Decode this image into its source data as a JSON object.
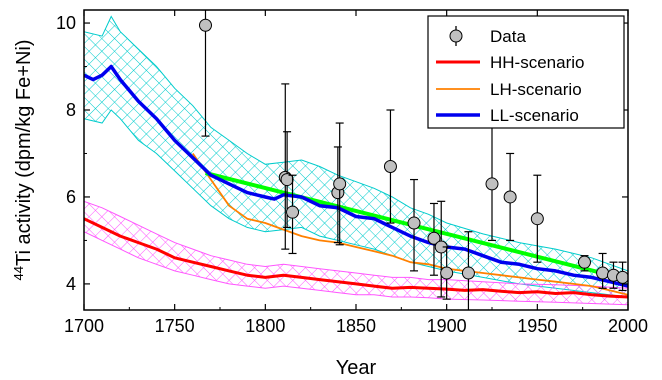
{
  "chart_data": {
    "type": "line",
    "xlabel": "Year",
    "ylabel_sup": "44",
    "ylabel": "Ti activity (dpm/kg Fe+Ni)",
    "xlim": [
      1700,
      2000
    ],
    "ylim": [
      3.4,
      10.3
    ],
    "x_ticks": [
      1700,
      1750,
      1800,
      1850,
      1900,
      1950,
      2000
    ],
    "y_ticks": [
      4,
      6,
      8,
      10
    ],
    "legend_position": "top-right",
    "legend": [
      "Data",
      "HH-scenario",
      "LH-scenario",
      "LL-scenario"
    ],
    "colors": {
      "hh": "#ff0000",
      "lh": "#ff8000",
      "ll": "#0000ee",
      "fit": "#00ff00",
      "band_upper": "#00cccc",
      "band_lower": "#ff55ff",
      "data_fill": "#c0c0c0"
    },
    "data_points": [
      {
        "x": 1767,
        "y": 9.95,
        "lo": 7.4,
        "hi": 10.3
      },
      {
        "x": 1811,
        "y": 6.45,
        "lo": 4.8,
        "hi": 8.6
      },
      {
        "x": 1812,
        "y": 6.4,
        "lo": 5.3,
        "hi": 7.5
      },
      {
        "x": 1815,
        "y": 5.65,
        "lo": 4.7,
        "hi": 6.5
      },
      {
        "x": 1840,
        "y": 6.1,
        "lo": 4.95,
        "hi": 7.15
      },
      {
        "x": 1841,
        "y": 6.3,
        "lo": 4.9,
        "hi": 7.7
      },
      {
        "x": 1869,
        "y": 6.7,
        "lo": 5.4,
        "hi": 8.0
      },
      {
        "x": 1882,
        "y": 5.4,
        "lo": 4.3,
        "hi": 6.4
      },
      {
        "x": 1893,
        "y": 5.05,
        "lo": 4.2,
        "hi": 5.85
      },
      {
        "x": 1897,
        "y": 4.85,
        "lo": 3.7,
        "hi": 5.9
      },
      {
        "x": 1900,
        "y": 4.25,
        "lo": 3.65,
        "hi": 4.85
      },
      {
        "x": 1912,
        "y": 4.25,
        "lo": 3.25,
        "hi": 5.2
      },
      {
        "x": 1925,
        "y": 6.3,
        "lo": 5.0,
        "hi": 7.6
      },
      {
        "x": 1935,
        "y": 6.0,
        "lo": 5.0,
        "hi": 7.0
      },
      {
        "x": 1950,
        "y": 5.5,
        "lo": 4.5,
        "hi": 6.5
      },
      {
        "x": 1976,
        "y": 4.5,
        "lo": 4.3,
        "hi": 4.65
      },
      {
        "x": 1986,
        "y": 4.25,
        "lo": 3.9,
        "hi": 4.7
      },
      {
        "x": 1992,
        "y": 4.2,
        "lo": 3.9,
        "hi": 4.5
      },
      {
        "x": 1997,
        "y": 4.15,
        "lo": 3.85,
        "hi": 4.5
      }
    ],
    "series": [
      {
        "name": "HH-scenario",
        "x": [
          1700,
          1710,
          1720,
          1730,
          1740,
          1750,
          1760,
          1770,
          1780,
          1790,
          1800,
          1810,
          1820,
          1830,
          1840,
          1850,
          1860,
          1870,
          1880,
          1890,
          1900,
          1910,
          1920,
          1930,
          1940,
          1950,
          1960,
          1970,
          1980,
          1990,
          2000
        ],
        "values": [
          5.5,
          5.3,
          5.1,
          4.95,
          4.8,
          4.6,
          4.5,
          4.4,
          4.3,
          4.2,
          4.15,
          4.2,
          4.15,
          4.1,
          4.05,
          4.0,
          3.95,
          3.9,
          3.92,
          3.9,
          3.88,
          3.85,
          3.87,
          3.83,
          3.8,
          3.82,
          3.78,
          3.8,
          3.75,
          3.72,
          3.7
        ]
      },
      {
        "name": "LH-scenario",
        "x": [
          1760,
          1770,
          1780,
          1790,
          1800,
          1810,
          1820,
          1830,
          1840,
          1850,
          1860,
          1870,
          1880,
          1890,
          1900,
          1910,
          1920,
          1930,
          1940,
          1950,
          1960,
          1970,
          1980,
          1990,
          2000
        ],
        "values": [
          7.0,
          6.4,
          5.8,
          5.5,
          5.4,
          5.25,
          5.1,
          5.0,
          4.95,
          4.85,
          4.75,
          4.65,
          4.5,
          4.45,
          4.35,
          4.3,
          4.25,
          4.2,
          4.15,
          4.1,
          4.05,
          4.0,
          3.95,
          3.85,
          3.75
        ]
      },
      {
        "name": "LL-scenario",
        "x": [
          1700,
          1705,
          1710,
          1715,
          1720,
          1730,
          1740,
          1750,
          1760,
          1770,
          1780,
          1790,
          1800,
          1805,
          1810,
          1820,
          1830,
          1840,
          1850,
          1860,
          1870,
          1880,
          1890,
          1900,
          1910,
          1920,
          1930,
          1940,
          1950,
          1960,
          1970,
          1980,
          1990,
          2000
        ],
        "values": [
          8.8,
          8.7,
          8.8,
          9.0,
          8.7,
          8.2,
          7.8,
          7.3,
          6.9,
          6.5,
          6.3,
          6.1,
          6.0,
          5.95,
          6.05,
          6.0,
          5.8,
          5.75,
          5.55,
          5.5,
          5.3,
          5.1,
          4.95,
          4.85,
          4.8,
          4.65,
          4.5,
          4.45,
          4.35,
          4.3,
          4.2,
          4.15,
          4.05,
          3.95
        ]
      },
      {
        "x": [
          1767,
          2000
        ],
        "values": [
          6.55,
          4.1
        ]
      }
    ],
    "band_upper": {
      "x": [
        1700,
        1710,
        1715,
        1720,
        1730,
        1740,
        1750,
        1760,
        1770,
        1780,
        1790,
        1800,
        1810,
        1820,
        1830,
        1840,
        1850,
        1860,
        1870,
        1880,
        1890,
        1900,
        1920,
        1940,
        1960,
        1980,
        2000
      ],
      "upper": [
        9.8,
        9.7,
        10.15,
        9.8,
        9.4,
        9.0,
        8.5,
        8.1,
        7.6,
        7.3,
        7.0,
        6.75,
        6.8,
        6.85,
        6.7,
        6.5,
        6.35,
        6.2,
        6.0,
        5.75,
        5.6,
        5.4,
        5.15,
        4.95,
        4.8,
        4.6,
        4.3
      ],
      "lower": [
        7.8,
        7.7,
        8.0,
        7.8,
        7.3,
        7.0,
        6.6,
        6.2,
        5.8,
        5.5,
        5.3,
        5.2,
        5.25,
        5.3,
        5.1,
        5.0,
        4.9,
        4.8,
        4.65,
        4.5,
        4.4,
        4.3,
        4.15,
        4.0,
        3.9,
        3.8,
        3.7
      ]
    },
    "band_lower": {
      "x": [
        1700,
        1710,
        1720,
        1730,
        1740,
        1750,
        1760,
        1770,
        1780,
        1790,
        1800,
        1810,
        1820,
        1830,
        1840,
        1850,
        1860,
        1870,
        1880,
        1890,
        1900,
        1920,
        1940,
        1960,
        1980,
        2000
      ],
      "upper": [
        5.9,
        5.75,
        5.55,
        5.35,
        5.15,
        4.95,
        4.8,
        4.65,
        4.55,
        4.45,
        4.4,
        4.45,
        4.4,
        4.35,
        4.3,
        4.25,
        4.2,
        4.15,
        4.15,
        4.1,
        4.1,
        4.05,
        4.0,
        3.98,
        3.95,
        3.9
      ],
      "lower": [
        5.2,
        5.0,
        4.8,
        4.6,
        4.45,
        4.3,
        4.2,
        4.1,
        4.0,
        3.95,
        3.9,
        3.95,
        3.9,
        3.85,
        3.8,
        3.75,
        3.75,
        3.7,
        3.7,
        3.68,
        3.65,
        3.63,
        3.6,
        3.58,
        3.55,
        3.52
      ]
    }
  }
}
